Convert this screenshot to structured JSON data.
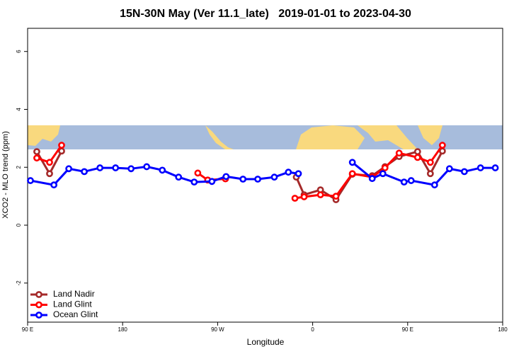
{
  "chart_data": {
    "type": "line",
    "title": "15N-30N May (Ver 11.1_late)   2019-01-01 to 2023-04-30",
    "x_label": "Longitude",
    "y_label": "XCO2 - MLO trend (ppm)",
    "xlim": [
      90,
      540
    ],
    "ylim": [
      -3.35,
      6.8
    ],
    "xticks": [
      90,
      180,
      {
        "value": 270,
        "label": "90 W"
      },
      {
        "value": 360,
        "label": "0"
      },
      {
        "value": 450,
        "label": "90 E"
      },
      {
        "value": 540,
        "label": "180"
      }
    ],
    "xtick_first_label": "90 E",
    "yticks": [
      -2,
      0,
      2,
      4,
      6
    ],
    "legend": "bottom-left",
    "series": [
      {
        "name": "Land Nadir",
        "color": "#a52a2a",
        "x": [
          98.7,
          110.8,
          122.2,
          null,
          277.4,
          null,
          344.5,
          351.9,
          367.4,
          382.1,
          397.6,
          416.4,
          428.5,
          441.9,
          459.4,
          471.5,
          482.9
        ],
        "values": [
          2.54,
          1.78,
          2.56,
          null,
          1.63,
          null,
          1.66,
          1.05,
          1.22,
          0.88,
          1.76,
          1.71,
          2.02,
          2.37,
          2.54,
          1.78,
          2.56
        ]
      },
      {
        "name": "Land Glint",
        "color": "#ff0000",
        "x": [
          98.7,
          110.8,
          122.2,
          null,
          251.2,
          260.6,
          277.4,
          null,
          343.2,
          351.9,
          367.4,
          382.1,
          397.6,
          416.4,
          428.5,
          441.9,
          459.4,
          471.5,
          482.9
        ],
        "values": [
          2.32,
          2.17,
          2.76,
          null,
          1.8,
          1.56,
          1.6,
          null,
          0.93,
          0.98,
          1.05,
          1.0,
          1.78,
          1.66,
          1.98,
          2.49,
          2.34,
          2.17,
          2.76
        ]
      },
      {
        "name": "Ocean Glint",
        "color": "#0000ff",
        "x": [
          92.7,
          114.9,
          129,
          143.7,
          158.5,
          173.3,
          188,
          202.8,
          217.6,
          233,
          247.8,
          264.6,
          278,
          294,
          308,
          323.7,
          337,
          346.5,
          null,
          397.6,
          416.4,
          426.5,
          446.6,
          453.3,
          475.5,
          489.6,
          503.7,
          519,
          533
        ],
        "values": [
          1.54,
          1.39,
          1.95,
          1.85,
          1.98,
          1.98,
          1.95,
          2.02,
          1.9,
          1.66,
          1.49,
          1.51,
          1.68,
          1.59,
          1.59,
          1.66,
          1.83,
          1.78,
          null,
          2.17,
          1.61,
          1.78,
          1.49,
          1.54,
          1.39,
          1.95,
          1.85,
          1.98,
          1.98
        ]
      }
    ]
  }
}
